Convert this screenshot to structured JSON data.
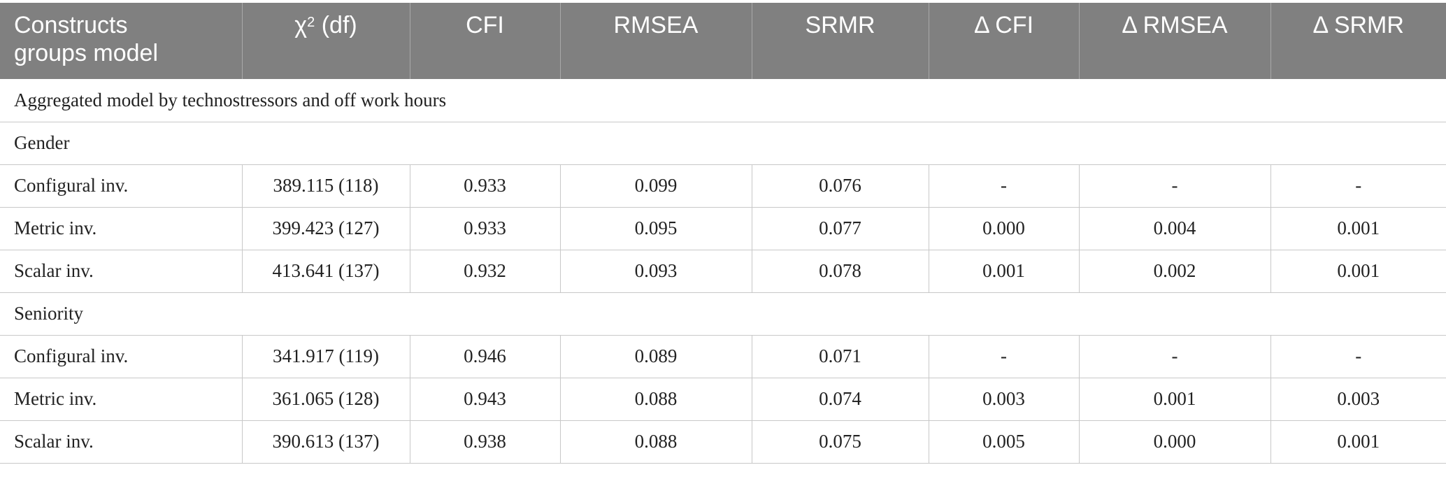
{
  "header": {
    "col0_line1": "Constructs",
    "col0_line2": "groups model",
    "col1_chi": "χ",
    "col1_sup": "2",
    "col1_rest": " (df)",
    "col2": "CFI",
    "col3": "RMSEA",
    "col4": "SRMR",
    "col5": "Δ CFI",
    "col6": "Δ RMSEA",
    "col7": "Δ SRMR"
  },
  "caption_row": "Aggregated model by technostressors and off work hours",
  "groups": [
    {
      "name": "Gender",
      "rows": [
        {
          "model": "Configural inv.",
          "chi": "389.115 (118)",
          "cfi": "0.933",
          "rmsea": "0.099",
          "srmr": "0.076",
          "dcfi": "-",
          "drmsea": "-",
          "dsrmr": "-"
        },
        {
          "model": "Metric inv.",
          "chi": "399.423 (127)",
          "cfi": "0.933",
          "rmsea": "0.095",
          "srmr": "0.077",
          "dcfi": "0.000",
          "drmsea": "0.004",
          "dsrmr": "0.001"
        },
        {
          "model": "Scalar inv.",
          "chi": "413.641 (137)",
          "cfi": "0.932",
          "rmsea": "0.093",
          "srmr": "0.078",
          "dcfi": "0.001",
          "drmsea": "0.002",
          "dsrmr": "0.001"
        }
      ]
    },
    {
      "name": "Seniority",
      "rows": [
        {
          "model": "Configural inv.",
          "chi": "341.917 (119)",
          "cfi": "0.946",
          "rmsea": "0.089",
          "srmr": "0.071",
          "dcfi": "-",
          "drmsea": "-",
          "dsrmr": "-"
        },
        {
          "model": "Metric inv.",
          "chi": "361.065 (128)",
          "cfi": "0.943",
          "rmsea": "0.088",
          "srmr": "0.074",
          "dcfi": "0.003",
          "drmsea": "0.001",
          "dsrmr": "0.003"
        },
        {
          "model": "Scalar inv.",
          "chi": "390.613 (137)",
          "cfi": "0.938",
          "rmsea": "0.088",
          "srmr": "0.075",
          "dcfi": "0.005",
          "drmsea": "0.000",
          "dsrmr": "0.001"
        }
      ]
    }
  ]
}
